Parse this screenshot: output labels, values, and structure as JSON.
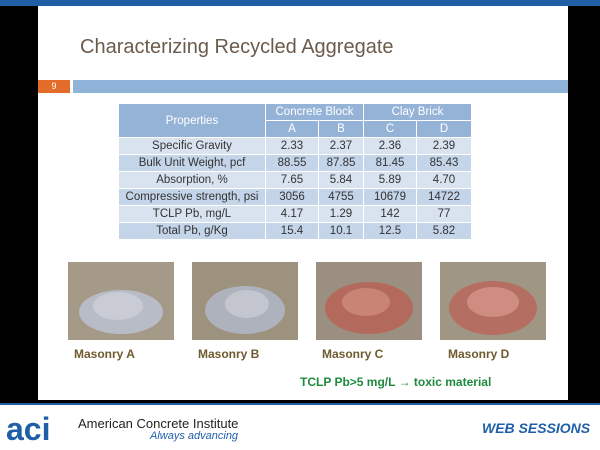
{
  "header": {
    "title": "Characterizing Recycled Aggregate",
    "page_number": "9"
  },
  "table": {
    "header_row1": [
      "Properties",
      "Concrete Block",
      "Clay Brick"
    ],
    "header_row2": [
      "A",
      "B",
      "C",
      "D"
    ],
    "rows": [
      [
        "Specific Gravity",
        "2.33",
        "2.37",
        "2.36",
        "2.39"
      ],
      [
        "Bulk Unit Weight, pcf",
        "88.55",
        "87.85",
        "81.45",
        "85.43"
      ],
      [
        "Absorption, %",
        "7.65",
        "5.84",
        "5.89",
        "4.70"
      ],
      [
        "Compressive strength, psi",
        "3056",
        "4755",
        "10679",
        "14722"
      ],
      [
        "TCLP Pb, mg/L",
        "4.17",
        "1.29",
        "142",
        "77"
      ],
      [
        "Total Pb, g/Kg",
        "15.4",
        "10.1",
        "12.5",
        "5.82"
      ]
    ]
  },
  "images": [
    {
      "label": "Masonry A"
    },
    {
      "label": "Masonry B"
    },
    {
      "label": "Masonry C"
    },
    {
      "label": "Masonry D"
    }
  ],
  "note": "TCLP Pb>5 mg/L → toxic material",
  "footer": {
    "logo": "aci",
    "org": "American Concrete Institute",
    "tagline": "Always advancing",
    "brand": "WEB SESSIONS"
  }
}
